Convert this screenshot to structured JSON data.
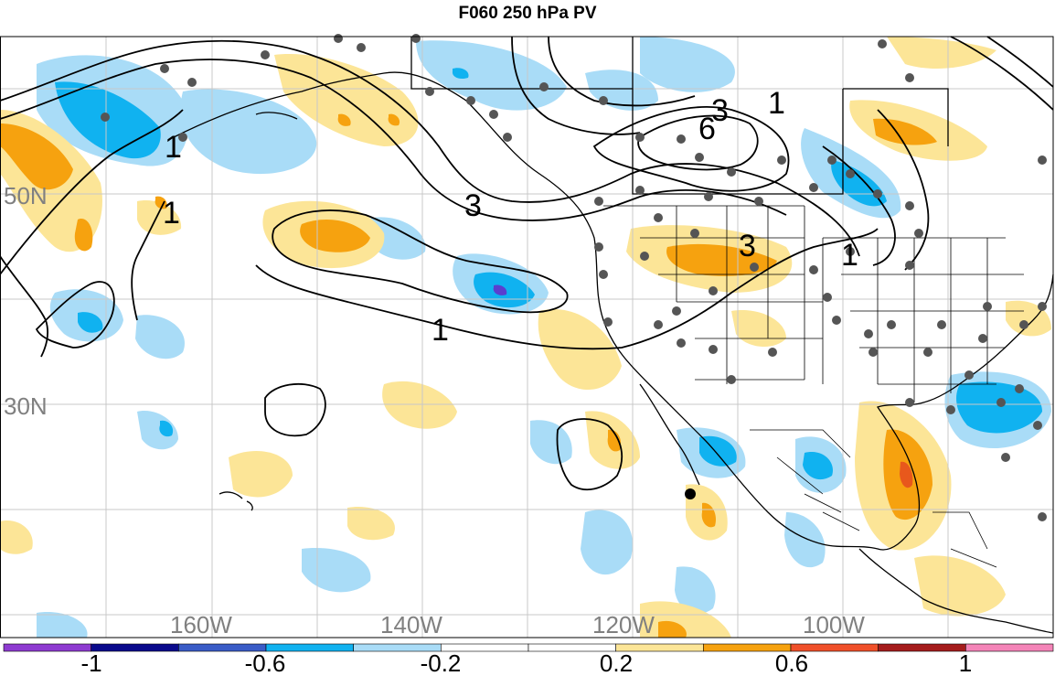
{
  "title": "F060 250 hPa PV",
  "map": {
    "lat_labels": [
      "50N",
      "30N"
    ],
    "lon_labels": [
      "160W",
      "140W",
      "120W",
      "100W"
    ],
    "contour_labels": [
      "3",
      "6",
      "1",
      "1",
      "3",
      "3",
      "1",
      "1",
      "1"
    ]
  },
  "colorbar": {
    "colors": [
      "#8e3bd1",
      "#0a0a8c",
      "#3a5cc7",
      "#10b2f0",
      "#a9dcf7",
      "#ffffff",
      "#ffffff",
      "#fce597",
      "#f6a20f",
      "#f0502a",
      "#a51c1c",
      "#f484b8"
    ],
    "tick_labels": [
      "-1",
      "-0.6",
      "-0.2",
      "0.2",
      "0.6",
      "1"
    ]
  },
  "colors": {
    "positive_light": "#fce597",
    "positive_mid": "#f6a20f",
    "positive_strong": "#e8581c",
    "negative_light": "#a9dcf7",
    "negative_mid": "#10b2f0",
    "negative_strong": "#5a3fcf",
    "grid": "#c8c8c8",
    "station": "#555555"
  }
}
